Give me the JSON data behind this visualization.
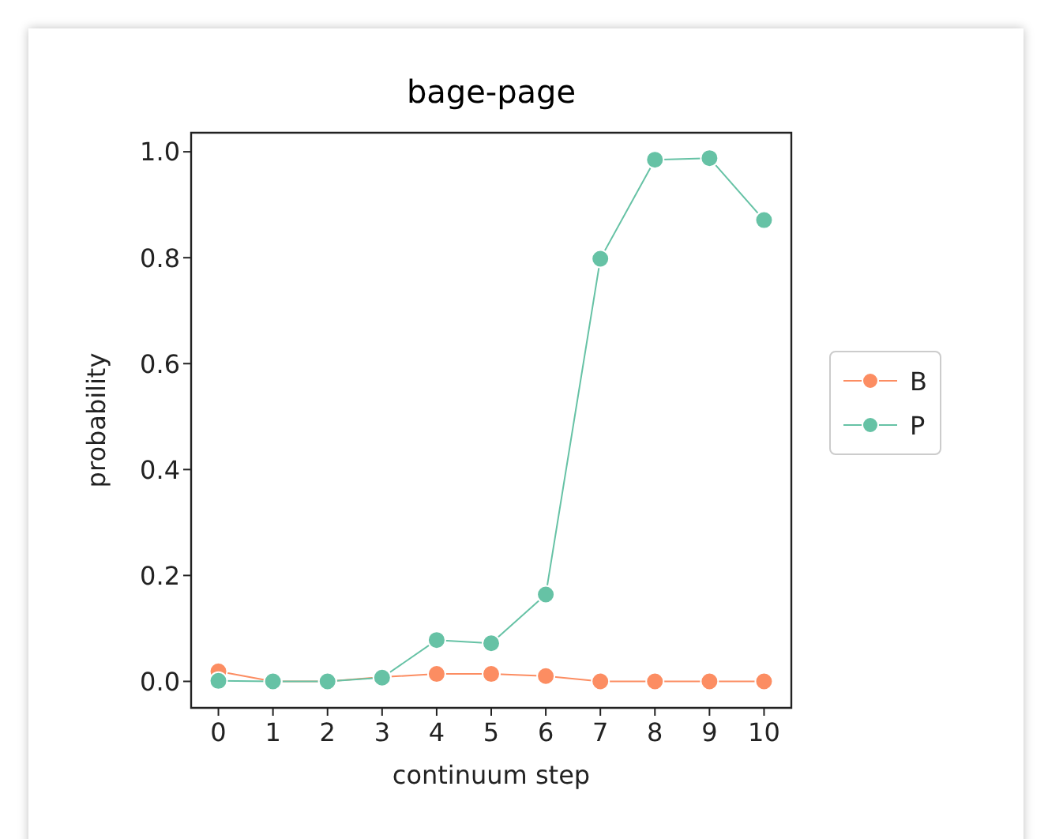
{
  "chart_data": {
    "type": "line",
    "title": "bage-page",
    "xlabel": "continuum step",
    "ylabel": "probability",
    "x": [
      0,
      1,
      2,
      3,
      4,
      5,
      6,
      7,
      8,
      9,
      10
    ],
    "series": [
      {
        "name": "B",
        "color": "#fc8d62",
        "values": [
          0.019,
          0,
          0,
          0.008,
          0.014,
          0.014,
          0.01,
          0,
          0,
          0,
          0
        ]
      },
      {
        "name": "P",
        "color": "#66c2a5",
        "values": [
          0.001,
          0,
          0,
          0.007,
          0.078,
          0.072,
          0.164,
          0.798,
          0.985,
          0.988,
          0.871
        ]
      }
    ],
    "xlim": [
      -0.5,
      10.5
    ],
    "xticks": [
      0,
      1,
      2,
      3,
      4,
      5,
      6,
      7,
      8,
      9,
      10
    ],
    "ylim": [
      -0.05,
      1.036
    ],
    "yticks": [
      {
        "value": 0,
        "label": "0.0"
      },
      {
        "value": 0.2,
        "label": "0.2"
      },
      {
        "value": 0.4,
        "label": "0.4"
      },
      {
        "value": 0.6,
        "label": "0.6"
      },
      {
        "value": 0.8,
        "label": "0.8"
      },
      {
        "value": 1,
        "label": "1.0"
      }
    ],
    "grid": false,
    "legend": "right",
    "marker": "circle",
    "line_style": "solid"
  }
}
